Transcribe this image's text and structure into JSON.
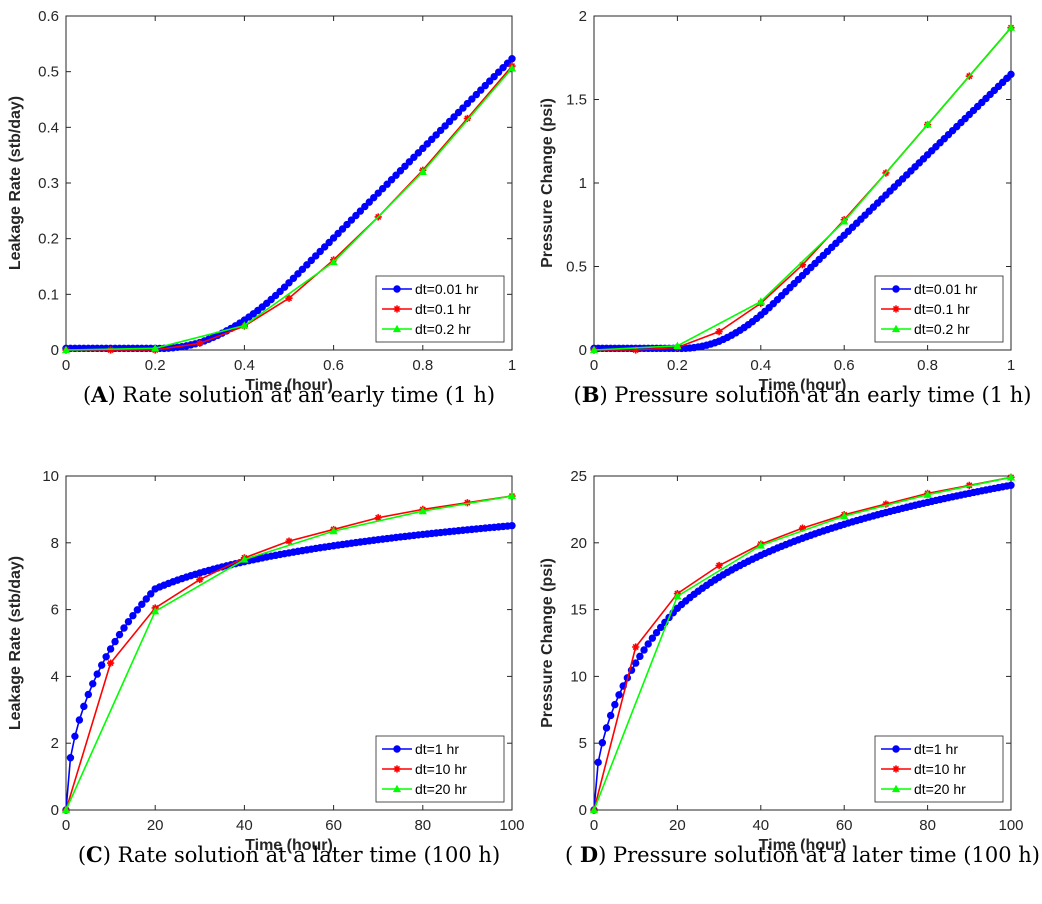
{
  "chart_data": [
    {
      "panel": "A",
      "type": "line",
      "caption": {
        "label": "A",
        "text": ") Rate solution at an early time (1 h)",
        "prefix": "("
      },
      "xlabel": "Time (hour)",
      "ylabel": "Leakage Rate (stb/day)",
      "xlim": [
        0,
        1
      ],
      "ylim": [
        0,
        0.6
      ],
      "xticks": [
        "0",
        "0.2",
        "0.4",
        "0.6",
        "0.8",
        "1"
      ],
      "yticks": [
        "0",
        "0.1",
        "0.2",
        "0.3",
        "0.4",
        "0.5",
        "0.6"
      ],
      "legend_position": "bottom-right",
      "series": [
        {
          "name": "dt=0.01 hr",
          "color": "#0000ff",
          "marker": "circle",
          "curve": {
            "kind": "early",
            "t0": 0.2,
            "c": 0.3,
            "slope": 0.805,
            "yShift": -0.005,
            "y0": 0.0
          },
          "step": 0.01
        },
        {
          "name": "dt=0.1 hr",
          "color": "#ff0000",
          "marker": "star",
          "x": [
            0,
            0.1,
            0.2,
            0.3,
            0.4,
            0.5,
            0.6,
            0.7,
            0.8,
            0.9,
            1.0
          ],
          "y": [
            0,
            0,
            0,
            0.012,
            0.043,
            0.093,
            0.162,
            0.239,
            0.323,
            0.416,
            0.51
          ]
        },
        {
          "name": "dt=0.2 hr",
          "color": "#00ff00",
          "marker": "triangle",
          "x": [
            0,
            0.2,
            0.4,
            0.6,
            0.8,
            1.0
          ],
          "y": [
            0,
            0.003,
            0.044,
            0.158,
            0.32,
            0.506
          ]
        }
      ]
    },
    {
      "panel": "B",
      "type": "line",
      "caption": {
        "label": "B",
        "text": ") Pressure solution at an early time (1 h)",
        "prefix": "("
      },
      "xlabel": "Time (hour)",
      "ylabel": "Pressure Change (psi)",
      "xlim": [
        0,
        1
      ],
      "ylim": [
        0,
        2
      ],
      "xticks": [
        "0",
        "0.2",
        "0.4",
        "0.6",
        "0.8",
        "1"
      ],
      "yticks": [
        "0",
        "0.5",
        "1",
        "1.5",
        "2"
      ],
      "ytickvals": [
        0,
        0.5,
        1,
        1.5,
        2
      ],
      "legend_position": "bottom-right",
      "series": [
        {
          "name": "dt=0.01 hr",
          "color": "#0000ff",
          "marker": "circle",
          "curve": {
            "kind": "early",
            "t0": 0.2,
            "c": 0.23,
            "slope": 2.41,
            "yShift": -0.005,
            "y0": 0.0
          },
          "step": 0.01
        },
        {
          "name": "dt=0.1 hr",
          "color": "#ff0000",
          "marker": "star",
          "x": [
            0,
            0.1,
            0.2,
            0.3,
            0.4,
            0.5,
            0.6,
            0.7,
            0.8,
            0.9,
            1.0
          ],
          "y": [
            0,
            0,
            0.015,
            0.11,
            0.28,
            0.51,
            0.78,
            1.06,
            1.35,
            1.64,
            1.93
          ]
        },
        {
          "name": "dt=0.2 hr",
          "color": "#00ff00",
          "marker": "triangle",
          "x": [
            0,
            0.2,
            0.4,
            0.6,
            0.8,
            1.0
          ],
          "y": [
            0,
            0.025,
            0.29,
            0.77,
            1.35,
            1.93
          ]
        }
      ]
    },
    {
      "panel": "C",
      "type": "line",
      "caption": {
        "label": "C",
        "text": ") Rate solution at a later time (100 h)",
        "prefix": "("
      },
      "xlabel": "Time (hour)",
      "ylabel": "Leakage Rate (stb/day)",
      "xlim": [
        0,
        100
      ],
      "ylim": [
        0,
        10
      ],
      "xticks": [
        "0",
        "20",
        "40",
        "60",
        "80",
        "100"
      ],
      "yticks": [
        "0",
        "2",
        "4",
        "6",
        "8",
        "10"
      ],
      "legend_position": "bottom-right",
      "series": [
        {
          "name": "dt=1 hr",
          "color": "#0000ff",
          "marker": "circle",
          "curve": {
            "kind": "late",
            "a": 0.47,
            "b": -2.47,
            "alpha": 0.78,
            "A": 1.4,
            "B": 6.62
          },
          "step": 1
        },
        {
          "name": "dt=10 hr",
          "color": "#ff0000",
          "marker": "star",
          "x": [
            0,
            10,
            20,
            30,
            40,
            50,
            60,
            70,
            80,
            90,
            100
          ],
          "y": [
            0,
            4.4,
            6.05,
            6.9,
            7.55,
            8.05,
            8.4,
            8.75,
            9.0,
            9.2,
            9.4
          ]
        },
        {
          "name": "dt=20 hr",
          "color": "#00ff00",
          "marker": "triangle",
          "x": [
            0,
            20,
            40,
            60,
            80,
            100
          ],
          "y": [
            0,
            5.95,
            7.5,
            8.35,
            8.95,
            9.4
          ]
        }
      ]
    },
    {
      "panel": "D",
      "type": "line",
      "caption": {
        "label": "D",
        "text": ") Pressure solution at a later time (100 h)",
        "prefix": "( "
      },
      "xlabel": "Time (hour)",
      "ylabel": "Pressure Change (psi)",
      "xlim": [
        0,
        100
      ],
      "ylim": [
        0,
        25
      ],
      "xticks": [
        "0",
        "20",
        "40",
        "60",
        "80",
        "100"
      ],
      "yticks": [
        "0",
        "5",
        "10",
        "15",
        "20",
        "25"
      ],
      "legend_position": "bottom-right",
      "series": [
        {
          "name": "dt=1 hr",
          "color": "#0000ff",
          "marker": "circle",
          "curve": {
            "kind": "late",
            "a": 1.9,
            "b": -4.93,
            "alpha": 0.78,
            "A": 5.2,
            "B": 15.1
          },
          "step": 1
        },
        {
          "name": "dt=10 hr",
          "color": "#ff0000",
          "marker": "star",
          "x": [
            0,
            10,
            20,
            30,
            40,
            50,
            60,
            70,
            80,
            90,
            100
          ],
          "y": [
            0,
            12.2,
            16.2,
            18.3,
            19.9,
            21.1,
            22.1,
            22.9,
            23.7,
            24.3,
            24.9
          ]
        },
        {
          "name": "dt=20 hr",
          "color": "#00ff00",
          "marker": "triangle",
          "x": [
            0,
            20,
            40,
            60,
            80,
            100
          ],
          "y": [
            0,
            16.0,
            19.8,
            22.0,
            23.6,
            24.9
          ]
        }
      ]
    }
  ]
}
